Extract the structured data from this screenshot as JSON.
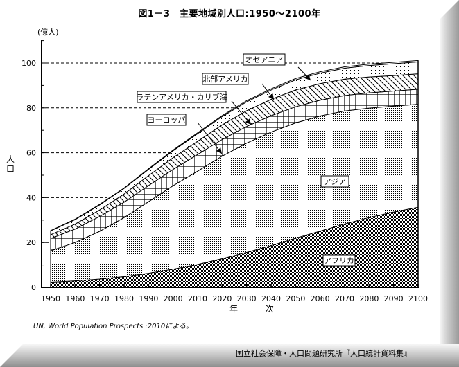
{
  "chart_data": {
    "type": "area",
    "stacked": true,
    "title": "図1－3　主要地域別人口:1950～2100年",
    "unit_label": "(億人)",
    "ylabel": "人口",
    "xlabel": "年　次",
    "ylim": [
      0,
      110
    ],
    "xlim": [
      1950,
      2100
    ],
    "y_ticks": [
      0,
      20,
      40,
      60,
      80,
      100
    ],
    "y_gridlines_dashed": [
      20,
      40,
      60,
      80,
      100
    ],
    "x_ticks": [
      1950,
      1960,
      1970,
      1980,
      1990,
      2000,
      2010,
      2020,
      2030,
      2040,
      2050,
      2060,
      2070,
      2080,
      2090,
      2100
    ],
    "x": [
      1950,
      1960,
      1970,
      1980,
      1990,
      2000,
      2010,
      2020,
      2030,
      2040,
      2050,
      2060,
      2070,
      2080,
      2090,
      2100
    ],
    "series": [
      {
        "name": "アフリカ",
        "pattern": "checker",
        "values": [
          2.3,
          2.9,
          3.7,
          4.8,
          6.3,
          8.1,
          10.2,
          12.8,
          15.6,
          18.6,
          21.9,
          25.1,
          28.3,
          31.1,
          33.6,
          35.7
        ]
      },
      {
        "name": "アジア",
        "pattern": "fine-dots",
        "values": [
          14.0,
          17.1,
          21.3,
          26.3,
          31.9,
          37.2,
          41.6,
          45.7,
          48.7,
          50.6,
          51.4,
          51.3,
          50.3,
          48.8,
          47.2,
          45.9
        ]
      },
      {
        "name": "ヨーロッパ",
        "pattern": "grid",
        "values": [
          5.5,
          6.0,
          6.6,
          6.9,
          7.2,
          7.3,
          7.4,
          7.4,
          7.4,
          7.3,
          7.2,
          7.0,
          6.9,
          6.8,
          6.7,
          6.7
        ]
      },
      {
        "name": "ラテンアメリカ・カリブ海",
        "pattern": "diagonal",
        "values": [
          1.7,
          2.2,
          2.9,
          3.6,
          4.4,
          5.2,
          5.9,
          6.5,
          7.0,
          7.3,
          7.5,
          7.4,
          7.3,
          7.1,
          6.9,
          6.9
        ]
      },
      {
        "name": "北部アメリカ",
        "pattern": "sparse-dots",
        "values": [
          1.7,
          2.0,
          2.3,
          2.5,
          2.8,
          3.1,
          3.4,
          3.7,
          4.0,
          4.2,
          4.5,
          4.7,
          4.9,
          5.1,
          5.3,
          5.3
        ]
      },
      {
        "name": "オセアニア",
        "pattern": "white",
        "values": [
          0.1,
          0.2,
          0.2,
          0.2,
          0.3,
          0.3,
          0.4,
          0.4,
          0.5,
          0.5,
          0.6,
          0.6,
          0.6,
          0.6,
          0.6,
          0.6
        ]
      }
    ],
    "annotations": [
      {
        "text": "オセアニア"
      },
      {
        "text": "北部アメリカ"
      },
      {
        "text": "ラテンアメリカ・カリブ海"
      },
      {
        "text": "ヨーロッパ"
      },
      {
        "text": "アジア"
      },
      {
        "text": "アフリカ"
      }
    ],
    "legend": "callout-labels",
    "grid": true
  },
  "source_note": "UN, World Population Prospects :2010による。",
  "credit": "国立社会保障・人口問題研究所『人口統計資料集』"
}
